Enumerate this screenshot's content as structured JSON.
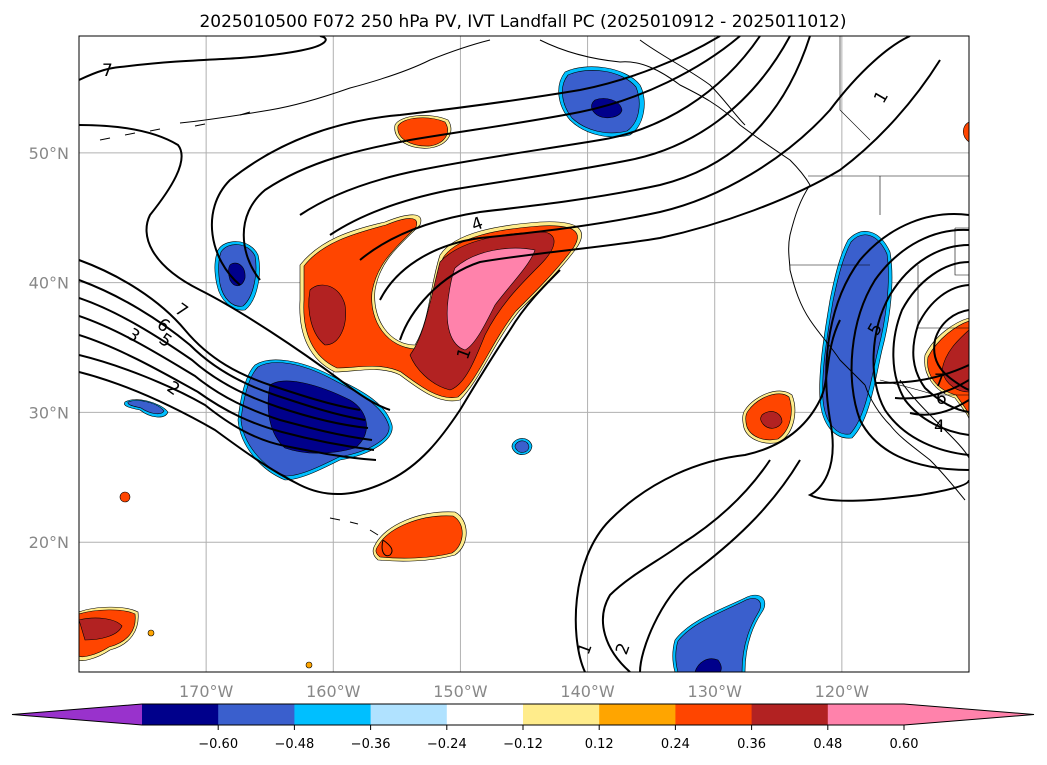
{
  "figure": {
    "title": "2025010500 F072 250 hPa PV, IVT Landfall PC (2025010912 - 2025011012)"
  },
  "map": {
    "projection": "PlateCarree",
    "extent": {
      "lon": [
        -180,
        -110
      ],
      "lat": [
        10,
        59
      ]
    },
    "lat_ticks": [
      {
        "value": 50,
        "label": "50°N"
      },
      {
        "value": 40,
        "label": "40°N"
      },
      {
        "value": 30,
        "label": "30°N"
      },
      {
        "value": 20,
        "label": "20°N"
      }
    ],
    "lon_ticks": [
      {
        "value": -170,
        "label": "170°W"
      },
      {
        "value": -160,
        "label": "160°W"
      },
      {
        "value": -150,
        "label": "150°W"
      },
      {
        "value": -140,
        "label": "140°W"
      },
      {
        "value": -130,
        "label": "130°W"
      },
      {
        "value": -120,
        "label": "120°W"
      }
    ],
    "gridlines": true,
    "contour_labels": [
      "7",
      "7",
      "6",
      "5",
      "3",
      "2",
      "4",
      "1",
      "1",
      "2",
      "1",
      "5",
      "7",
      "6",
      "4"
    ]
  },
  "colorbar": {
    "orientation": "horizontal",
    "extend": "both",
    "colors": [
      "#9932cc",
      "#00008b",
      "#3a5fcd",
      "#00bfff",
      "#b0e2ff",
      "#ffffff",
      "#ffec8b",
      "#ffa500",
      "#ff4500",
      "#b22222",
      "#ff82ab",
      "#ff82ab"
    ],
    "ticks": [
      "−0.60",
      "−0.48",
      "−0.36",
      "−0.24",
      "−0.12",
      "0.12",
      "0.24",
      "0.36",
      "0.48",
      "0.60"
    ]
  }
}
